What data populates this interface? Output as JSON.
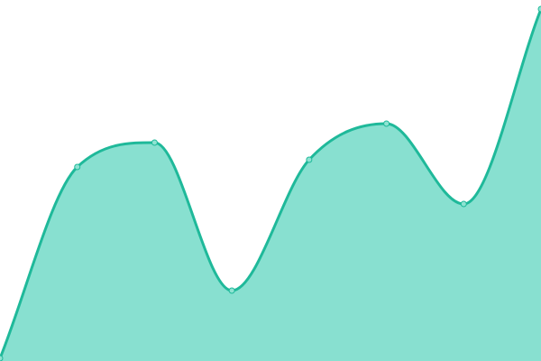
{
  "chart_data": {
    "type": "area",
    "smooth": true,
    "x": [
      0,
      1,
      2,
      3,
      4,
      5,
      6,
      7
    ],
    "series": [
      {
        "values": [
          3,
          215,
          242,
          78,
          223,
          263,
          174,
          390
        ]
      }
    ],
    "ylim": [
      0,
      400
    ],
    "grid": false,
    "axes_visible": false,
    "legend": "none",
    "title": "",
    "xlabel": "",
    "ylabel": "",
    "colors": {
      "line": "#1fb99a",
      "fill": "#88e0d0",
      "point_fill": "#8fe3d2",
      "point_stroke": "#1fb99a"
    }
  }
}
